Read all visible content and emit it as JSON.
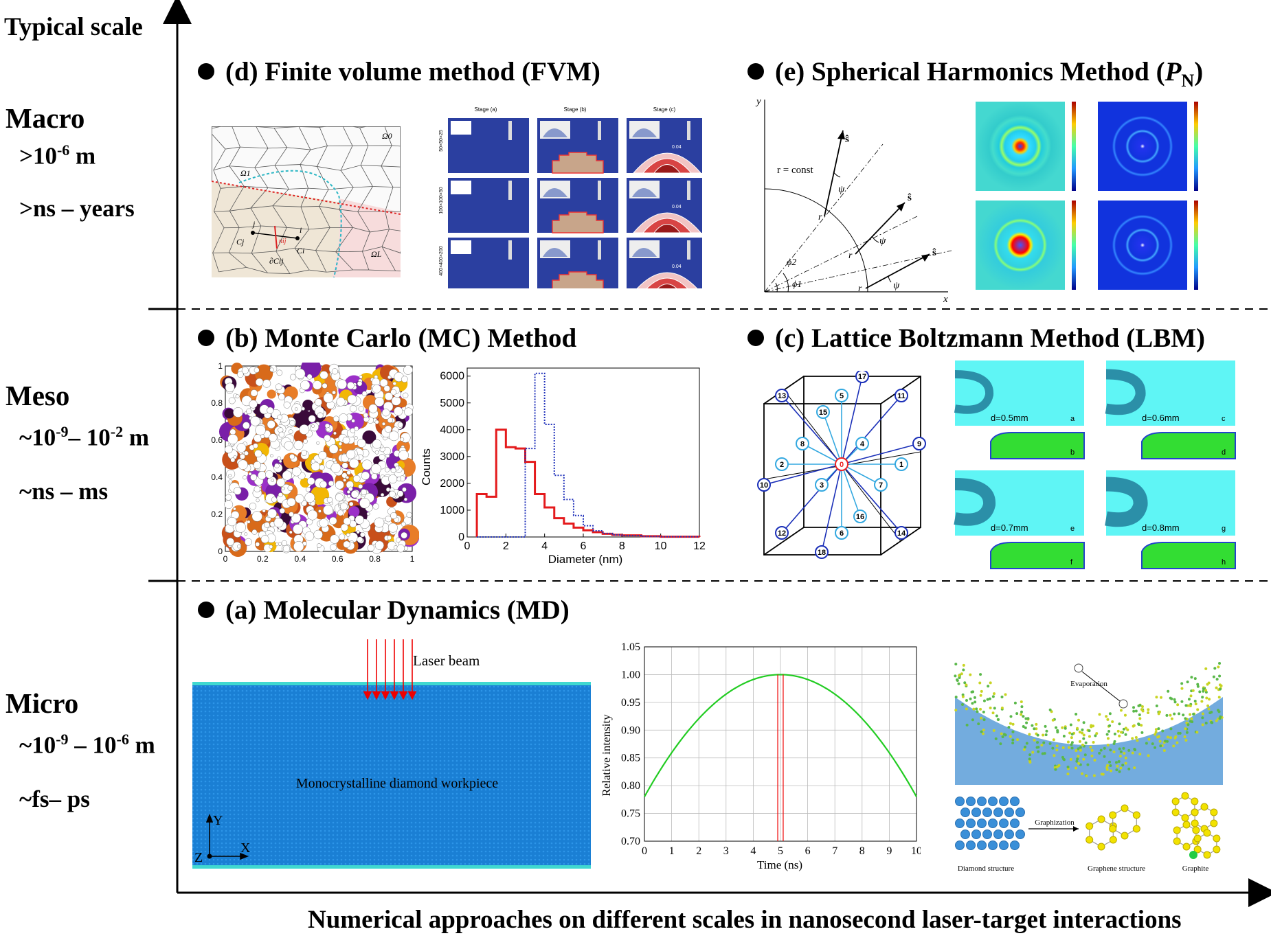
{
  "axes": {
    "y_title": "Typical scale",
    "x_caption": "Numerical approaches on different scales in nanosecond laser-target interactions"
  },
  "scales": [
    {
      "name": "Macro",
      "length": ">10",
      "length_exp": "-6",
      "length_unit": " m",
      "time": ">ns – years"
    },
    {
      "name": "Meso",
      "length_a": "~10",
      "length_exp_a": "-9",
      "length_b": "– 10",
      "length_exp_b": "-2",
      "length_unit": " m",
      "time": "~ns – ms"
    },
    {
      "name": "Micro",
      "length_a": "~10",
      "length_exp_a": "-9",
      "length_b": " – 10",
      "length_exp_b": "-6",
      "length_unit": " m",
      "time": "~fs– ps"
    }
  ],
  "methods": {
    "d": "(d) Finite volume method (FVM)",
    "e_main": "(e) Spherical Harmonics Method (",
    "e_symbol": "P",
    "e_sub": "N",
    "e_close": ")",
    "b": "(b) Monte Carlo (MC) Method",
    "c": "(c) Lattice Boltzmann Method (LBM)",
    "a": "(a) Molecular Dynamics (MD)"
  },
  "fvm": {
    "mesh_labels": [
      "Ω0",
      "Ω1",
      "ΩL",
      "j",
      "i",
      "Cj",
      "Ci",
      "∂Cij",
      "nij"
    ],
    "stage_headers": [
      "Stage (a)",
      "Stage (b)",
      "Stage (c)"
    ],
    "row_labels": [
      "50×50×25",
      "100×100×50",
      "400×400×200"
    ],
    "contour_value": "0.04"
  },
  "pn": {
    "labels": [
      "y",
      "x",
      "r = const",
      "ŝ",
      "ŝ",
      "ŝ",
      "ψ",
      "ψ",
      "ψ",
      "r",
      "r",
      "r",
      "ϕ2",
      "ϕ1"
    ]
  },
  "mc_hist": {
    "ylabel": "Counts",
    "xlabel": "Diameter (nm)",
    "scatter_ticks": [
      "0",
      "0.2",
      "0.4",
      "0.6",
      "0.8",
      "1"
    ]
  },
  "chart_data": [
    {
      "type": "bar",
      "title": "",
      "xlabel": "Diameter (nm)",
      "ylabel": "Counts",
      "xlim": [
        0,
        12
      ],
      "ylim": [
        0,
        6300
      ],
      "x_ticks": [
        "0",
        "2",
        "4",
        "6",
        "8",
        "10",
        "12"
      ],
      "y_ticks": [
        "0",
        "1000",
        "2000",
        "3000",
        "4000",
        "5000",
        "6000"
      ],
      "bin_edges": [
        0.5,
        1.0,
        1.5,
        2.0,
        2.5,
        3.0,
        3.5,
        4.0,
        4.5,
        5.0,
        5.5,
        6.0,
        6.5,
        7.0,
        7.5,
        8.0,
        9.0,
        10.0,
        12.0
      ],
      "series": [
        {
          "name": "solid",
          "color": "#e41a1c",
          "values": [
            1600,
            1500,
            4000,
            3350,
            3300,
            2800,
            1600,
            1100,
            700,
            500,
            350,
            250,
            180,
            120,
            80,
            60,
            30,
            10
          ]
        },
        {
          "name": "dotted",
          "color": "#2233bb",
          "values": [
            0,
            0,
            0,
            0,
            0,
            3300,
            6100,
            4200,
            2300,
            1400,
            800,
            420,
            230,
            130,
            80,
            50,
            20,
            10
          ]
        }
      ]
    },
    {
      "type": "line",
      "title": "",
      "xlabel": "Time (ns)",
      "ylabel": "Relative intensity",
      "xlim": [
        0,
        10
      ],
      "ylim": [
        0.7,
        1.05
      ],
      "x_ticks": [
        "0",
        "1",
        "2",
        "3",
        "4",
        "5",
        "6",
        "7",
        "8",
        "9",
        "10"
      ],
      "y_ticks": [
        "0.70",
        "0.75",
        "0.80",
        "0.85",
        "0.90",
        "0.95",
        "1.00",
        "1.05"
      ],
      "series": [
        {
          "name": "laser pulse",
          "color": "#22cc22",
          "x": [
            0,
            1,
            2,
            3,
            4,
            5,
            6,
            7,
            8,
            9,
            10
          ],
          "y": [
            0.78,
            0.8486,
            0.9036,
            0.9452,
            0.9734,
            1.0,
            0.9734,
            0.9452,
            0.9036,
            0.8486,
            0.78
          ]
        }
      ],
      "markers_x": [
        4.9,
        5.1
      ]
    }
  ],
  "lbm": {
    "node_ids": [
      "0",
      "1",
      "2",
      "3",
      "4",
      "5",
      "6",
      "7",
      "8",
      "9",
      "10",
      "11",
      "12",
      "13",
      "14",
      "15",
      "16",
      "17",
      "18"
    ],
    "panel_diameters": [
      "d=0.5mm",
      "d=0.6mm",
      "d=0.7mm",
      "d=0.8mm"
    ],
    "panel_letters": [
      "a",
      "b",
      "c",
      "d",
      "e",
      "f",
      "g",
      "h"
    ]
  },
  "md": {
    "laser_label": "Laser beam",
    "workpiece_label": "Monocrystalline diamond workpiece",
    "axis_labels": [
      "Y",
      "Z",
      "X"
    ],
    "evaporation_label": "Evaporation",
    "graphization_label": "Graphization",
    "structure_labels": [
      "Diamond structure",
      "Graphene structure",
      "Graphite"
    ]
  },
  "colors": {
    "axis": "#000000",
    "fvm_blue": "#2b3fa0",
    "workpiece_blue": "#1a7fd4",
    "lbm_cyan": "#5ff5f5",
    "lbm_green": "#33dd33",
    "hist_red": "#e41a1c",
    "hist_blue": "#2233bb",
    "pulse_green": "#22cc22"
  }
}
